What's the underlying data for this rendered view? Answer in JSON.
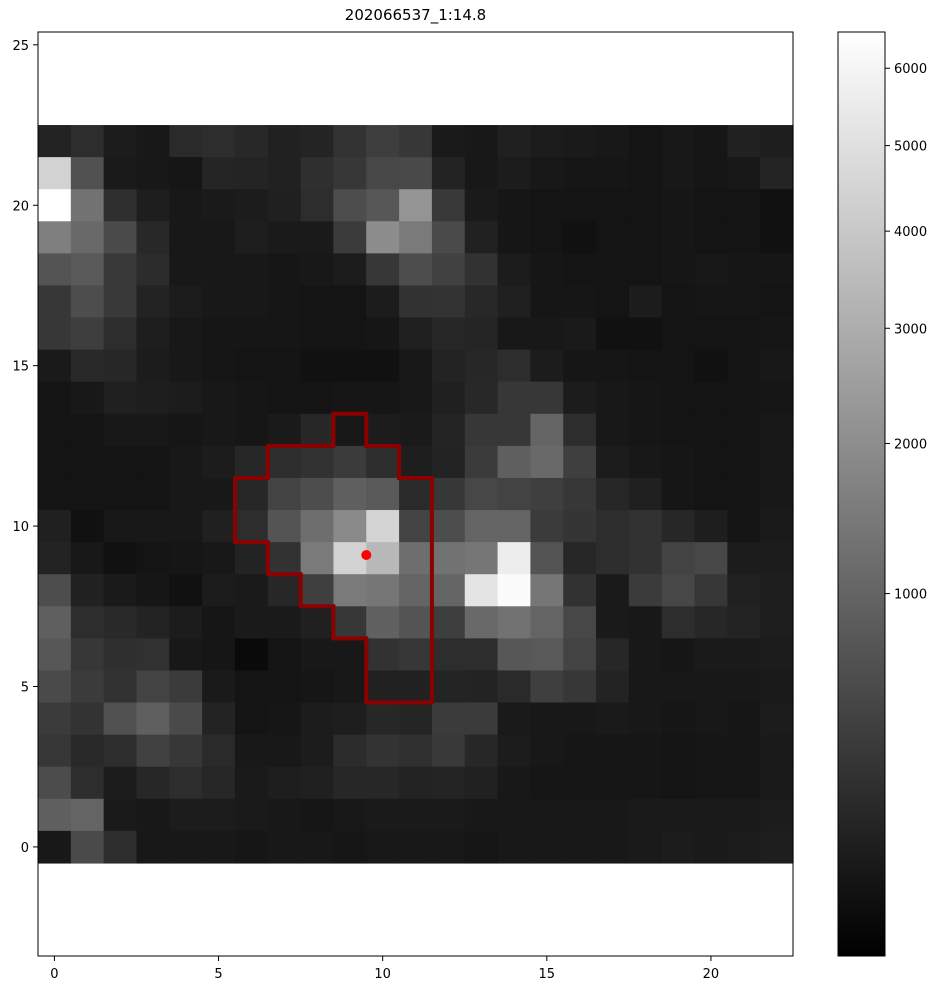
{
  "chart_data": {
    "type": "heatmap",
    "title": "202066537_1:14.8",
    "xlabel": "",
    "ylabel": "",
    "xlim": [
      -0.5,
      22.5
    ],
    "ylim": [
      -3.4,
      25.4
    ],
    "image_extent": {
      "x": [
        -0.5,
        22.5
      ],
      "y": [
        -0.5,
        22.5
      ]
    },
    "x_ticks": [
      0,
      5,
      10,
      15,
      20
    ],
    "y_ticks": [
      0,
      5,
      10,
      15,
      20,
      25
    ],
    "colormap": "gray",
    "colorbar": {
      "ticks": [
        1000,
        2000,
        3000,
        4000,
        5000,
        6000
      ],
      "vmin": 0,
      "vmax": 6500,
      "scale": "sqrt"
    },
    "grid_note": "rows listed from y=22 (top) down to y=0 (bottom); values are approximate pixel counts",
    "grid": [
      [
        120,
        200,
        80,
        60,
        180,
        200,
        160,
        110,
        130,
        260,
        380,
        300,
        70,
        60,
        100,
        80,
        70,
        60,
        40,
        60,
        50,
        110,
        90
      ],
      [
        4400,
        650,
        70,
        60,
        50,
        140,
        130,
        110,
        220,
        300,
        500,
        540,
        120,
        60,
        80,
        60,
        50,
        50,
        40,
        60,
        50,
        60,
        130
      ],
      [
        6500,
        1300,
        220,
        90,
        60,
        70,
        80,
        100,
        200,
        600,
        750,
        2200,
        330,
        70,
        50,
        40,
        40,
        40,
        40,
        50,
        40,
        40,
        30
      ],
      [
        1600,
        1100,
        550,
        160,
        60,
        60,
        90,
        70,
        70,
        350,
        2000,
        1500,
        550,
        110,
        50,
        40,
        30,
        40,
        40,
        50,
        40,
        40,
        30
      ],
      [
        700,
        800,
        320,
        190,
        60,
        60,
        60,
        50,
        60,
        80,
        300,
        600,
        420,
        250,
        80,
        50,
        40,
        40,
        40,
        50,
        60,
        50,
        50
      ],
      [
        300,
        600,
        320,
        120,
        80,
        60,
        60,
        50,
        40,
        40,
        80,
        250,
        260,
        160,
        100,
        50,
        50,
        40,
        80,
        40,
        50,
        50,
        40
      ],
      [
        300,
        380,
        200,
        90,
        60,
        50,
        50,
        50,
        40,
        40,
        50,
        100,
        150,
        140,
        60,
        60,
        70,
        30,
        30,
        40,
        40,
        40,
        50
      ],
      [
        70,
        170,
        150,
        80,
        60,
        50,
        40,
        40,
        30,
        30,
        30,
        60,
        120,
        150,
        200,
        80,
        50,
        50,
        40,
        40,
        30,
        40,
        60
      ],
      [
        40,
        60,
        100,
        90,
        80,
        60,
        50,
        40,
        40,
        50,
        50,
        60,
        100,
        160,
        300,
        300,
        80,
        60,
        50,
        40,
        40,
        40,
        50
      ],
      [
        40,
        40,
        60,
        60,
        50,
        60,
        50,
        70,
        150,
        60,
        80,
        70,
        130,
        300,
        300,
        1000,
        200,
        60,
        50,
        40,
        40,
        40,
        60
      ],
      [
        40,
        40,
        40,
        40,
        60,
        80,
        150,
        200,
        250,
        350,
        200,
        90,
        120,
        350,
        900,
        1100,
        400,
        80,
        60,
        50,
        40,
        40,
        60
      ],
      [
        40,
        40,
        40,
        40,
        60,
        60,
        150,
        450,
        600,
        900,
        800,
        180,
        300,
        500,
        450,
        400,
        300,
        150,
        100,
        50,
        40,
        40,
        60
      ],
      [
        100,
        30,
        60,
        60,
        60,
        100,
        200,
        700,
        1200,
        1900,
        4500,
        450,
        600,
        1000,
        1000,
        350,
        280,
        200,
        250,
        150,
        90,
        40,
        70
      ],
      [
        120,
        60,
        30,
        40,
        50,
        60,
        120,
        250,
        1500,
        4400,
        3400,
        1200,
        1300,
        1400,
        5600,
        700,
        150,
        200,
        250,
        450,
        500,
        80,
        80
      ],
      [
        600,
        110,
        70,
        50,
        30,
        80,
        70,
        150,
        400,
        1500,
        1400,
        1000,
        1000,
        5200,
        6300,
        1400,
        250,
        70,
        350,
        500,
        300,
        110,
        90
      ],
      [
        900,
        200,
        170,
        120,
        80,
        50,
        70,
        70,
        100,
        300,
        950,
        700,
        380,
        1100,
        1300,
        1000,
        500,
        70,
        60,
        200,
        150,
        120,
        90
      ],
      [
        750,
        300,
        220,
        240,
        60,
        50,
        10,
        40,
        60,
        60,
        250,
        300,
        200,
        200,
        750,
        800,
        450,
        150,
        60,
        50,
        70,
        70,
        80
      ],
      [
        550,
        350,
        250,
        450,
        350,
        70,
        40,
        40,
        50,
        60,
        110,
        110,
        130,
        120,
        180,
        400,
        300,
        120,
        60,
        60,
        60,
        60,
        70
      ],
      [
        350,
        260,
        650,
        900,
        550,
        120,
        40,
        50,
        80,
        90,
        150,
        140,
        350,
        350,
        70,
        60,
        60,
        70,
        60,
        50,
        60,
        50,
        80
      ],
      [
        300,
        170,
        200,
        420,
        300,
        180,
        60,
        60,
        80,
        190,
        260,
        230,
        320,
        150,
        80,
        60,
        50,
        50,
        50,
        40,
        50,
        50,
        70
      ],
      [
        580,
        200,
        80,
        150,
        200,
        150,
        70,
        90,
        100,
        150,
        150,
        120,
        130,
        110,
        60,
        50,
        50,
        50,
        50,
        40,
        50,
        50,
        70
      ],
      [
        900,
        1000,
        70,
        60,
        80,
        80,
        70,
        60,
        50,
        60,
        70,
        70,
        70,
        60,
        60,
        60,
        60,
        60,
        70,
        70,
        70,
        70,
        80
      ],
      [
        60,
        550,
        200,
        60,
        60,
        60,
        50,
        60,
        60,
        50,
        60,
        60,
        60,
        50,
        60,
        60,
        60,
        60,
        70,
        80,
        70,
        80,
        90
      ]
    ],
    "aperture": {
      "color": "#8b0000",
      "outline": [
        [
          8.5,
          13.5
        ],
        [
          9.5,
          13.5
        ],
        [
          9.5,
          12.5
        ],
        [
          10.5,
          12.5
        ],
        [
          10.5,
          11.5
        ],
        [
          11.5,
          11.5
        ],
        [
          11.5,
          4.5
        ],
        [
          9.5,
          4.5
        ],
        [
          9.5,
          6.5
        ],
        [
          8.5,
          6.5
        ],
        [
          8.5,
          7.5
        ],
        [
          7.5,
          7.5
        ],
        [
          7.5,
          8.5
        ],
        [
          6.5,
          8.5
        ],
        [
          6.5,
          9.5
        ],
        [
          5.5,
          9.5
        ],
        [
          5.5,
          11.5
        ],
        [
          6.5,
          11.5
        ],
        [
          6.5,
          12.5
        ],
        [
          8.5,
          12.5
        ]
      ]
    },
    "marker": {
      "x": 9.5,
      "y": 9.1,
      "color": "#ff0000"
    }
  }
}
